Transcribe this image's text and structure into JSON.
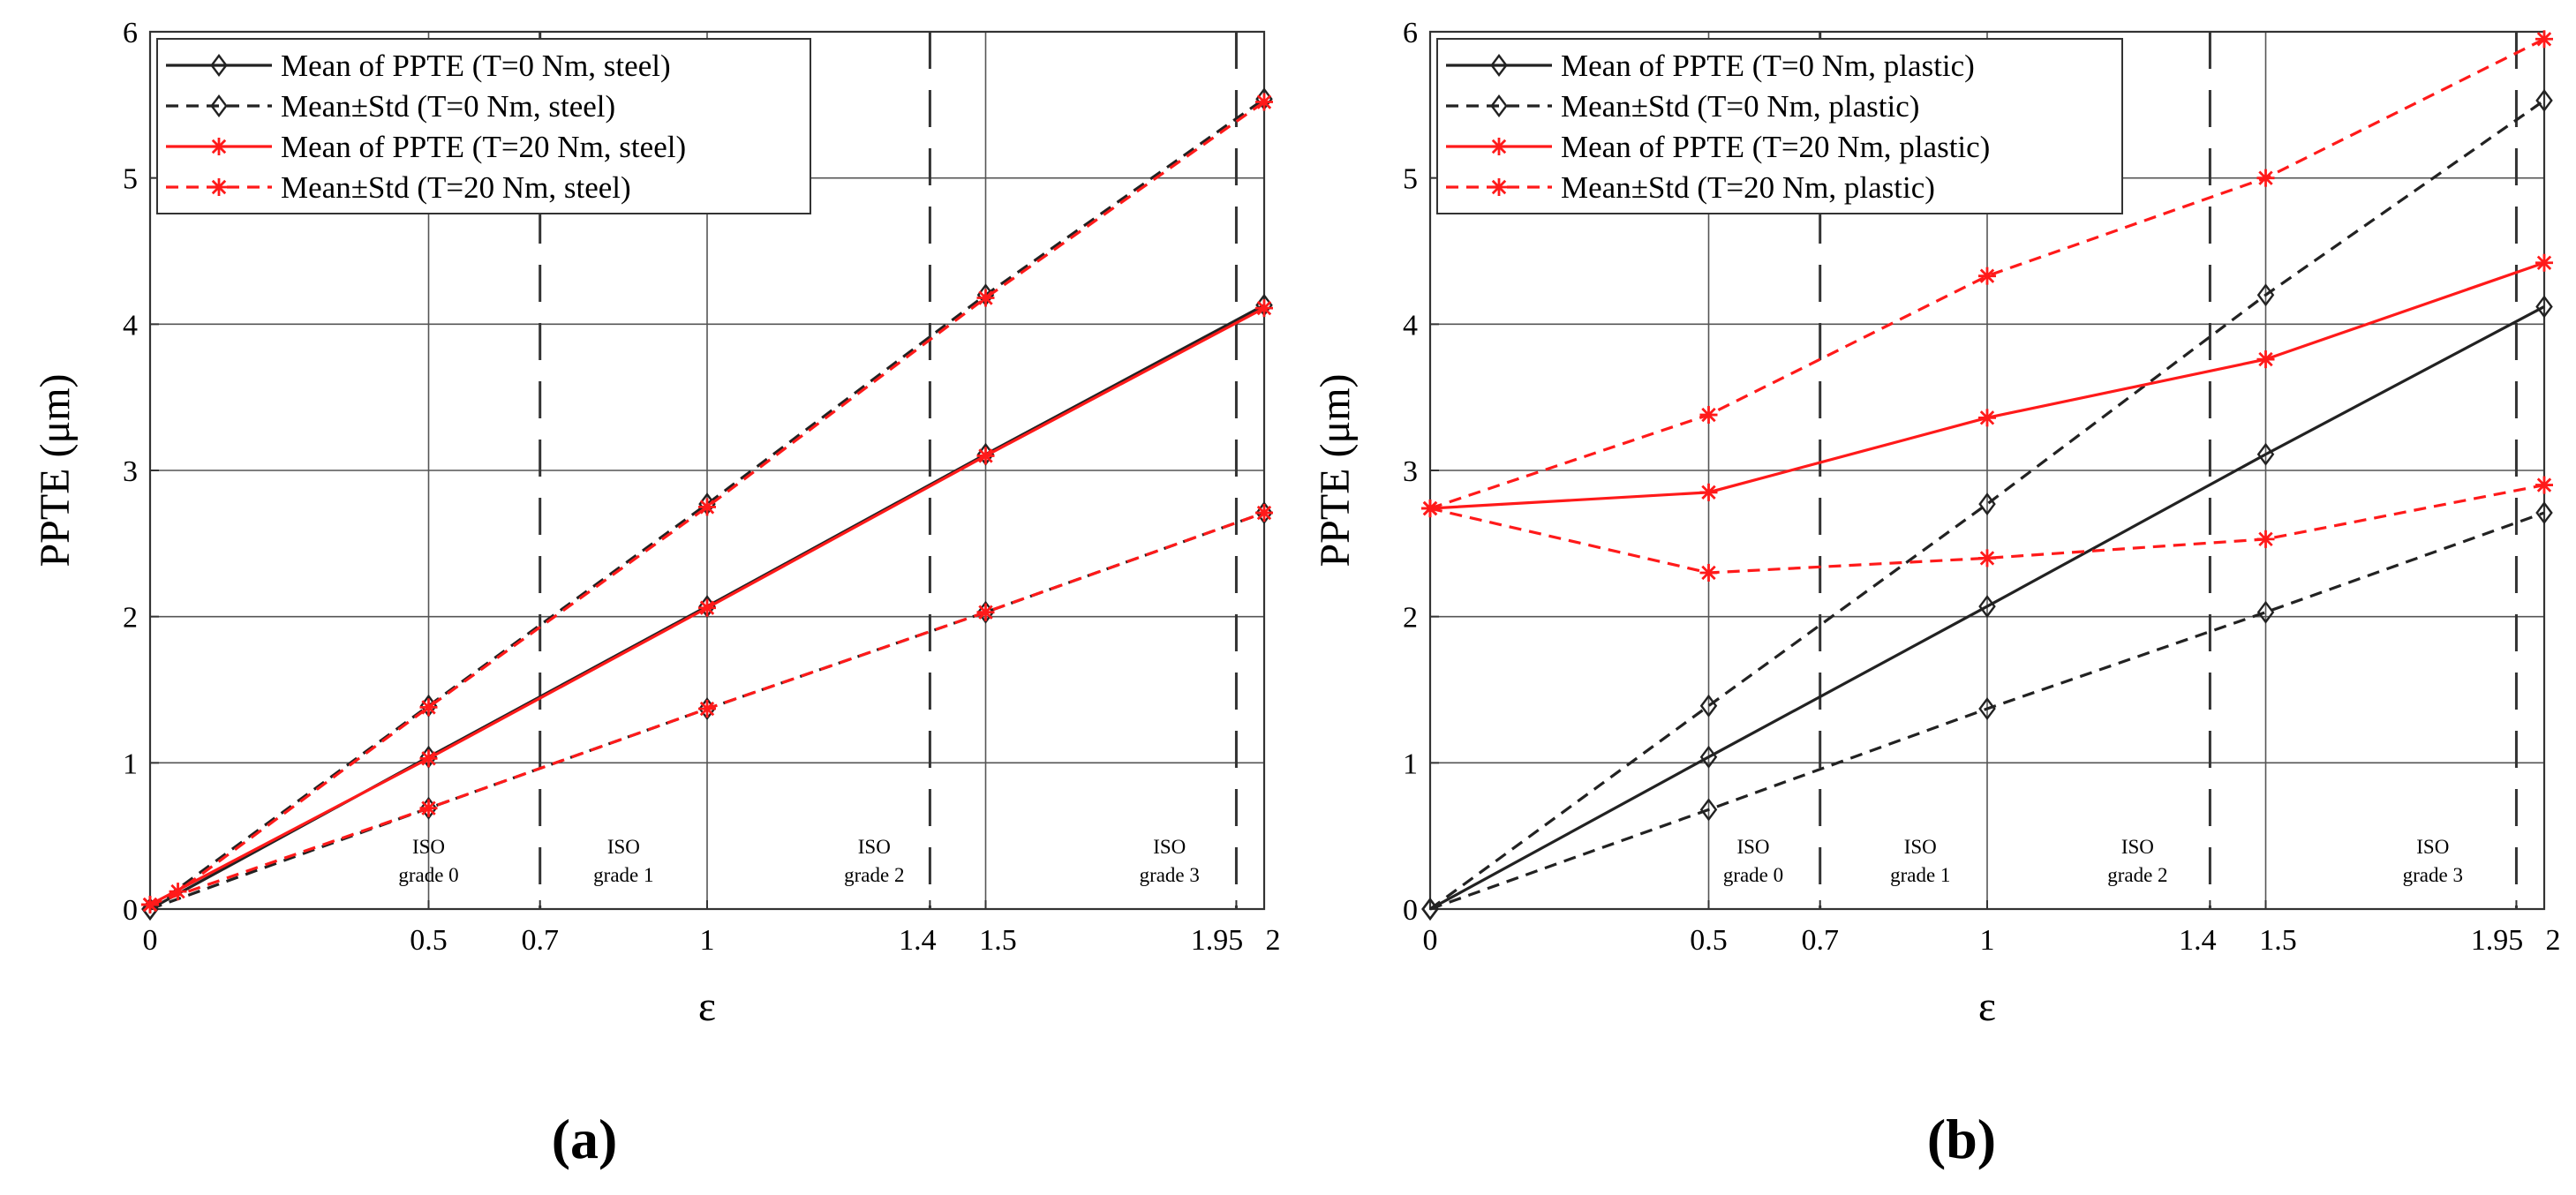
{
  "figure": {
    "panel_labels": [
      "(a)",
      "(b)"
    ]
  },
  "colors": {
    "black_series": "#222222",
    "red_series": "#ff1a1a",
    "grid": "#555555",
    "boundary": "#333333"
  },
  "chart_data": [
    {
      "type": "line",
      "panel": "(a)",
      "xlabel": "ε",
      "ylabel": "PPTE (μm)",
      "xlim": [
        0,
        2
      ],
      "ylim": [
        0,
        6
      ],
      "xticks": [
        0,
        0.5,
        0.7,
        1,
        1.4,
        1.5,
        1.95,
        2
      ],
      "xtick_labels": [
        "0",
        "0.5",
        "0.7",
        "1",
        "1.4",
        "1.5",
        "1.95",
        "2"
      ],
      "yticks": [
        0,
        1,
        2,
        3,
        4,
        5,
        6
      ],
      "ytick_labels": [
        "0",
        "1",
        "2",
        "3",
        "4",
        "5",
        "6"
      ],
      "grid_x": [
        0.5,
        1,
        1.5,
        2
      ],
      "grid_y": [
        1,
        2,
        3,
        4,
        5,
        6
      ],
      "grade_boundaries": [
        0.7,
        1.4,
        1.95
      ],
      "zones": [
        {
          "x": 0.5,
          "line1": "ISO",
          "line2": "grade 0"
        },
        {
          "x": 0.85,
          "line1": "ISO",
          "line2": "grade 1"
        },
        {
          "x": 1.3,
          "line1": "ISO",
          "line2": "grade 2"
        },
        {
          "x": 1.83,
          "line1": "ISO",
          "line2": "grade 3"
        }
      ],
      "legend_position": "top-left",
      "series": [
        {
          "name": "Mean of PPTE (T=0 Nm, steel)",
          "color": "#222222",
          "style": "solid",
          "marker": "diamond",
          "legend": true,
          "x": [
            0,
            0.5,
            1,
            1.5,
            2
          ],
          "y": [
            0,
            1.04,
            2.07,
            3.11,
            4.13
          ]
        },
        {
          "name": "Mean±Std (T=0 Nm, steel)",
          "color": "#222222",
          "style": "dashed",
          "marker": "diamond",
          "legend": true,
          "x": [
            0,
            0.5,
            1,
            1.5,
            2
          ],
          "y": [
            0,
            1.39,
            2.77,
            4.2,
            5.54
          ]
        },
        {
          "name": "Mean-Std (T=0 Nm, steel)",
          "color": "#222222",
          "style": "dashed",
          "marker": "diamond",
          "legend": false,
          "x": [
            0,
            0.5,
            1,
            1.5,
            2
          ],
          "y": [
            0,
            0.69,
            1.37,
            2.03,
            2.71
          ]
        },
        {
          "name": "Mean of PPTE (T=20 Nm, steel)",
          "color": "#ff1a1a",
          "style": "solid",
          "marker": "star",
          "legend": true,
          "x": [
            0,
            0.5,
            1,
            1.5,
            2
          ],
          "y": [
            0.03,
            1.03,
            2.06,
            3.1,
            4.11
          ]
        },
        {
          "name": "Mean±Std (T=20 Nm, steel)",
          "color": "#ff1a1a",
          "style": "dashed",
          "marker": "star",
          "legend": true,
          "x": [
            0,
            0.05,
            0.5,
            1,
            1.5,
            2
          ],
          "y": [
            0.03,
            0.12,
            1.38,
            2.75,
            4.18,
            5.52
          ]
        },
        {
          "name": "Mean-Std (T=20 Nm, steel)",
          "color": "#ff1a1a",
          "style": "dashed",
          "marker": "star",
          "legend": false,
          "x": [
            0,
            0.5,
            1,
            1.5,
            2
          ],
          "y": [
            0.03,
            0.69,
            1.37,
            2.03,
            2.71
          ]
        }
      ]
    },
    {
      "type": "line",
      "panel": "(b)",
      "xlabel": "ε",
      "ylabel": "PPTE (μm)",
      "xlim": [
        0,
        2
      ],
      "ylim": [
        0,
        6
      ],
      "xticks": [
        0,
        0.5,
        0.7,
        1,
        1.4,
        1.5,
        1.95,
        2
      ],
      "xtick_labels": [
        "0",
        "0.5",
        "0.7",
        "1",
        "1.4",
        "1.5",
        "1.95",
        "2"
      ],
      "yticks": [
        0,
        1,
        2,
        3,
        4,
        5,
        6
      ],
      "ytick_labels": [
        "0",
        "1",
        "2",
        "3",
        "4",
        "5",
        "6"
      ],
      "grid_x": [
        0.5,
        1,
        1.5,
        2
      ],
      "grid_y": [
        1,
        2,
        3,
        4,
        5,
        6
      ],
      "grade_boundaries": [
        0.7,
        1.4,
        1.95
      ],
      "zones": [
        {
          "x": 0.58,
          "line1": "ISO",
          "line2": "grade 0"
        },
        {
          "x": 0.88,
          "line1": "ISO",
          "line2": "grade 1"
        },
        {
          "x": 1.27,
          "line1": "ISO",
          "line2": "grade 2"
        },
        {
          "x": 1.8,
          "line1": "ISO",
          "line2": "grade 3"
        }
      ],
      "legend_position": "top-left",
      "series": [
        {
          "name": "Mean of PPTE (T=0 Nm, plastic)",
          "color": "#222222",
          "style": "solid",
          "marker": "diamond",
          "legend": true,
          "x": [
            0,
            0.5,
            1,
            1.5,
            2
          ],
          "y": [
            0,
            1.04,
            2.07,
            3.11,
            4.12
          ]
        },
        {
          "name": "Mean±Std (T=0 Nm, plastic)",
          "color": "#222222",
          "style": "dashed",
          "marker": "diamond",
          "legend": true,
          "x": [
            0,
            0.5,
            1,
            1.5,
            2
          ],
          "y": [
            0,
            1.39,
            2.77,
            4.2,
            5.53
          ]
        },
        {
          "name": "Mean-Std (T=0 Nm, plastic)",
          "color": "#222222",
          "style": "dashed",
          "marker": "diamond",
          "legend": false,
          "x": [
            0,
            0.5,
            1,
            1.5,
            2
          ],
          "y": [
            0,
            0.68,
            1.37,
            2.03,
            2.71
          ]
        },
        {
          "name": "Mean of PPTE (T=20 Nm, plastic)",
          "color": "#ff1a1a",
          "style": "solid",
          "marker": "star",
          "legend": true,
          "x": [
            0,
            0.5,
            1,
            1.5,
            2
          ],
          "y": [
            2.74,
            2.85,
            3.36,
            3.76,
            4.42
          ]
        },
        {
          "name": "Mean±Std (T=20 Nm, plastic)",
          "color": "#ff1a1a",
          "style": "dashed",
          "marker": "star",
          "legend": true,
          "x": [
            0,
            0.5,
            1,
            1.5,
            2
          ],
          "y": [
            2.74,
            3.38,
            4.33,
            5.0,
            5.95
          ]
        },
        {
          "name": "Mean-Std (T=20 Nm, plastic)",
          "color": "#ff1a1a",
          "style": "dashed",
          "marker": "star",
          "legend": false,
          "x": [
            0,
            0.5,
            1,
            1.5,
            2
          ],
          "y": [
            2.74,
            2.3,
            2.4,
            2.53,
            2.9
          ]
        }
      ]
    }
  ]
}
